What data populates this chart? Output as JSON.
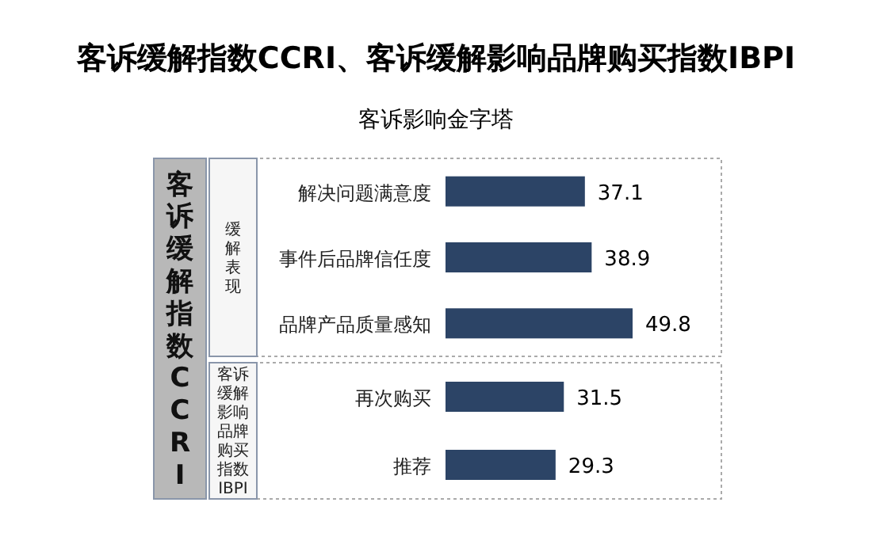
{
  "chart_data": [
    {
      "type": "bar",
      "orientation": "horizontal",
      "title": "客诉缓解指数CCRI、客诉缓解影响品牌购买指数IBPI",
      "subtitle": "客诉影响金字塔",
      "annotations": [
        "客诉缓解指数CCRI"
      ],
      "ylabel": "缓解表现",
      "categories": [
        "解决问题满意度",
        "事件后品牌信任度",
        "品牌产品质量感知"
      ],
      "values": [
        37.1,
        38.9,
        49.8
      ],
      "color": "#2c4466",
      "data_labels": true
    },
    {
      "type": "bar",
      "orientation": "horizontal",
      "ylabel": "客诉缓解影响品牌购买指数IBPI",
      "categories": [
        "再次购买",
        "推荐"
      ],
      "values": [
        31.5,
        29.3
      ],
      "color": "#2c4466",
      "data_labels": true
    }
  ]
}
